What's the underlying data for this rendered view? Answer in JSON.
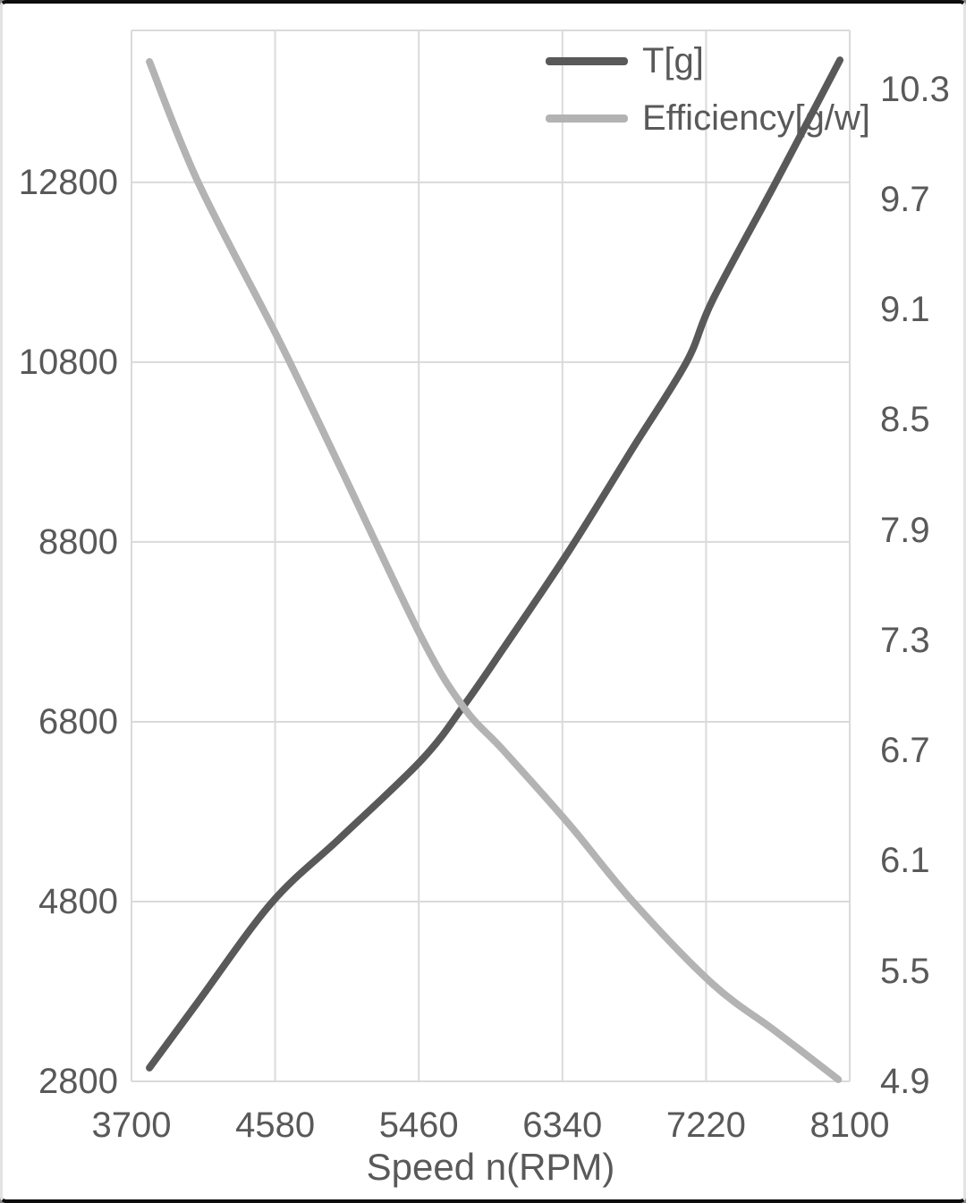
{
  "chart_data": {
    "type": "line",
    "title": "",
    "xlabel": "Speed n(RPM)",
    "grid": true,
    "legend_position": "top-right-inside",
    "x_axis": {
      "min": 3700,
      "max": 8100,
      "tick_values": [
        3700,
        4580,
        5460,
        6340,
        7220,
        8100
      ],
      "tick_labels": [
        "3700",
        "4580",
        "5460",
        "6340",
        "7220",
        "8100"
      ]
    },
    "left_axis": {
      "min": 2800,
      "max": 14490,
      "tick_values": [
        2800,
        4800,
        6800,
        8800,
        10800,
        12800
      ],
      "tick_labels": [
        "2800",
        "4800",
        "6800",
        "8800",
        "10800",
        "12800"
      ]
    },
    "right_axis": {
      "min": 4.9,
      "max": 10.62,
      "tick_values": [
        4.9,
        5.5,
        6.1,
        6.7,
        7.3,
        7.9,
        8.5,
        9.1,
        9.7,
        10.3
      ],
      "tick_labels": [
        "4.9",
        "5.5",
        "6.1",
        "6.7",
        "7.3",
        "7.9",
        "8.5",
        "9.1",
        "9.7",
        "10.3"
      ]
    },
    "series": [
      {
        "name": "T[g]",
        "axis": "left",
        "color": "#595959",
        "points": [
          [
            3810,
            2950
          ],
          [
            4110,
            3690
          ],
          [
            4560,
            4790
          ],
          [
            4980,
            5510
          ],
          [
            5480,
            6380
          ],
          [
            5740,
            6990
          ],
          [
            5980,
            7620
          ],
          [
            6380,
            8700
          ],
          [
            6770,
            9840
          ],
          [
            7100,
            10800
          ],
          [
            7260,
            11490
          ],
          [
            7650,
            12810
          ],
          [
            8040,
            14160
          ]
        ]
      },
      {
        "name": "Efficiency[g/w]",
        "axis": "right",
        "color": "#b3b3b3",
        "points": [
          [
            3810,
            10.45
          ],
          [
            4110,
            9.79
          ],
          [
            4600,
            8.94
          ],
          [
            4980,
            8.24
          ],
          [
            5480,
            7.31
          ],
          [
            5740,
            6.93
          ],
          [
            5980,
            6.7
          ],
          [
            6380,
            6.3
          ],
          [
            6770,
            5.88
          ],
          [
            7260,
            5.43
          ],
          [
            7650,
            5.17
          ],
          [
            8030,
            4.91
          ]
        ]
      }
    ]
  },
  "colors": {
    "text": "#595959",
    "gridline": "#dadada",
    "plot_border": "#d4d4d4",
    "background": "#ffffff",
    "frame_dark": "#0d0d0d",
    "frame_light": "#e3e3e3"
  }
}
